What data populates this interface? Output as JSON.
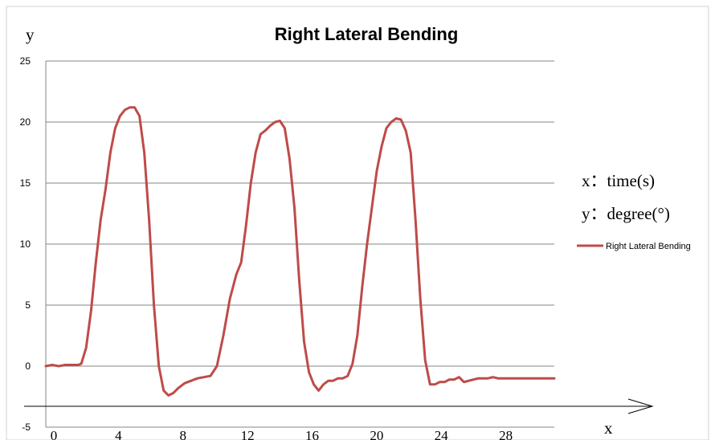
{
  "chart_data": {
    "type": "line",
    "title": "Right Lateral Bending",
    "xlabel": "x",
    "ylabel": "y",
    "ylim": [
      -5,
      25
    ],
    "xlim": [
      0,
      31.5
    ],
    "y_ticks": [
      "25",
      "20",
      "15",
      "10",
      "5",
      "0",
      "-5"
    ],
    "x_ticks": [
      "0",
      "4",
      "8",
      "12",
      "16",
      "20",
      "24",
      "28"
    ],
    "grid": true,
    "legend": {
      "position": "right",
      "entries": [
        "Right Lateral Bending"
      ]
    },
    "annotations": [
      "x：time(s)",
      "y：degree(°)"
    ],
    "series": [
      {
        "name": "Right Lateral Bending",
        "color": "#be4b48",
        "x": [
          0,
          0.4,
          0.8,
          1.2,
          1.6,
          2.0,
          2.2,
          2.5,
          2.8,
          3.1,
          3.4,
          3.7,
          4.0,
          4.3,
          4.6,
          4.9,
          5.2,
          5.5,
          5.8,
          6.1,
          6.4,
          6.7,
          7.0,
          7.3,
          7.6,
          7.9,
          8.2,
          8.6,
          9.0,
          9.4,
          9.8,
          10.2,
          10.6,
          11.0,
          11.4,
          11.8,
          12.1,
          12.4,
          12.7,
          13.0,
          13.3,
          13.6,
          13.9,
          14.2,
          14.5,
          14.8,
          15.1,
          15.4,
          15.7,
          16.0,
          16.3,
          16.6,
          16.9,
          17.2,
          17.5,
          17.8,
          18.1,
          18.4,
          18.7,
          19.0,
          19.3,
          19.6,
          19.9,
          20.2,
          20.5,
          20.8,
          21.1,
          21.4,
          21.7,
          22.0,
          22.3,
          22.6,
          22.9,
          23.2,
          23.5,
          23.8,
          24.1,
          24.4,
          24.7,
          25.0,
          25.3,
          25.6,
          25.9,
          26.2,
          26.5,
          26.8,
          27.1,
          27.4,
          27.7,
          28.0,
          28.3,
          28.6,
          28.9,
          29.2,
          29.5,
          29.8,
          30.1,
          30.5,
          31.0,
          31.5
        ],
        "y": [
          0.0,
          0.1,
          0.0,
          0.1,
          0.1,
          0.1,
          0.2,
          1.5,
          4.5,
          8.5,
          12.0,
          14.5,
          17.5,
          19.5,
          20.5,
          21.0,
          21.2,
          21.2,
          20.5,
          17.5,
          12.0,
          5.0,
          0.0,
          -2.0,
          -2.4,
          -2.2,
          -1.8,
          -1.4,
          -1.2,
          -1.0,
          -0.9,
          -0.8,
          0.0,
          2.5,
          5.5,
          7.5,
          8.5,
          11.5,
          15.0,
          17.5,
          19.0,
          19.3,
          19.7,
          20.0,
          20.1,
          19.5,
          17.0,
          13.0,
          7.0,
          2.0,
          -0.5,
          -1.5,
          -2.0,
          -1.5,
          -1.2,
          -1.2,
          -1.0,
          -1.0,
          -0.8,
          0.2,
          2.5,
          6.5,
          10.0,
          13.0,
          16.0,
          18.0,
          19.5,
          20.0,
          20.3,
          20.2,
          19.3,
          17.5,
          12.0,
          5.5,
          0.5,
          -1.5,
          -1.5,
          -1.3,
          -1.3,
          -1.1,
          -1.1,
          -0.9,
          -1.3,
          -1.2,
          -1.1,
          -1.0,
          -1.0,
          -1.0,
          -0.9,
          -1.0,
          -1.0,
          -1.0,
          -1.0,
          -1.0,
          -1.0,
          -1.0,
          -1.0,
          -1.0,
          -1.0,
          -1.0
        ]
      }
    ]
  }
}
